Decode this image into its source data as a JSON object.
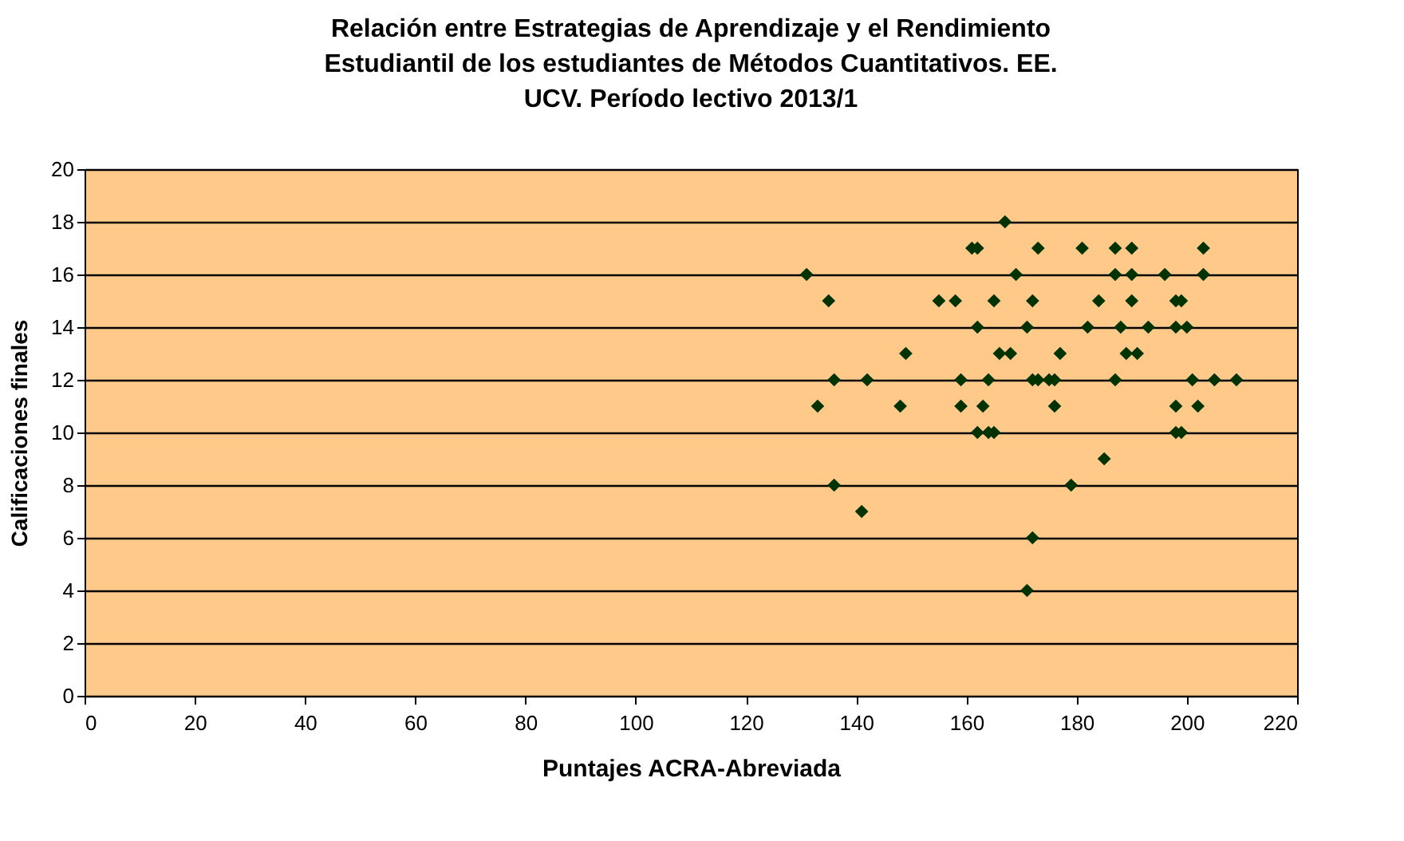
{
  "chart_data": {
    "type": "scatter",
    "title": [
      "Relación entre Estrategias de Aprendizaje y el Rendimiento",
      "Estudiantil de los estudiantes de Métodos Cuantitativos. EE.",
      "UCV. Período lectivo 2013/1"
    ],
    "xlabel": "Puntajes ACRA-Abreviada",
    "ylabel": "Calificaciones finales",
    "x": [
      131,
      135,
      149,
      136,
      142,
      133,
      148,
      136,
      141,
      167,
      161,
      162,
      173,
      181,
      187,
      190,
      203,
      169,
      187,
      190,
      196,
      203,
      155,
      158,
      165,
      172,
      184,
      190,
      198,
      199,
      162,
      171,
      182,
      188,
      193,
      198,
      200,
      166,
      168,
      177,
      189,
      191,
      159,
      164,
      172,
      173,
      175,
      176,
      187,
      201,
      205,
      209,
      159,
      163,
      176,
      198,
      202,
      162,
      164,
      165,
      198,
      199,
      185,
      179,
      172,
      171
    ],
    "series": [
      {
        "color": "#003300",
        "values": [
          16,
          15,
          13,
          12,
          12,
          11,
          11,
          8,
          7,
          18,
          17,
          17,
          17,
          17,
          17,
          17,
          17,
          16,
          16,
          16,
          16,
          16,
          15,
          15,
          15,
          15,
          15,
          15,
          15,
          15,
          14,
          14,
          14,
          14,
          14,
          14,
          14,
          13,
          13,
          13,
          13,
          13,
          12,
          12,
          12,
          12,
          12,
          12,
          12,
          12,
          12,
          12,
          11,
          11,
          11,
          11,
          11,
          10,
          10,
          10,
          10,
          10,
          9,
          8,
          6,
          4
        ]
      }
    ],
    "xlim": [
      0,
      220
    ],
    "xticks": [
      0,
      20,
      40,
      60,
      80,
      100,
      120,
      140,
      160,
      180,
      200,
      220
    ],
    "ylim": [
      0,
      20
    ],
    "yticks": [
      0,
      2,
      4,
      6,
      8,
      10,
      12,
      14,
      16,
      18,
      20
    ],
    "grid": "y",
    "marker": "diamond"
  }
}
